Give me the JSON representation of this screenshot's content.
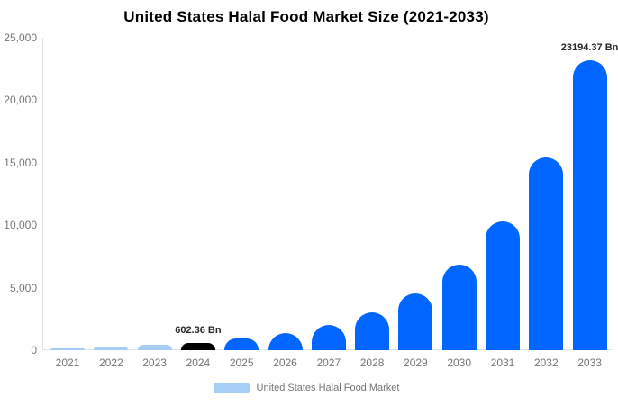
{
  "chart_data": {
    "type": "bar",
    "title": "United States Halal Food Market Size (2021-2033)",
    "xlabel": "",
    "ylabel": "",
    "categories": [
      "2021",
      "2022",
      "2023",
      "2024",
      "2025",
      "2026",
      "2027",
      "2028",
      "2029",
      "2030",
      "2031",
      "2032",
      "2033"
    ],
    "values": [
      180,
      270,
      400,
      602.36,
      903.5,
      1355.3,
      2033,
      3049.4,
      4574.2,
      6861.3,
      10291.9,
      15437.8,
      23194.37
    ],
    "bar_colors": [
      "#a5cdf6",
      "#a5cdf6",
      "#a5cdf6",
      "#000000",
      "#0066ff",
      "#0066ff",
      "#0066ff",
      "#0066ff",
      "#0066ff",
      "#0066ff",
      "#0066ff",
      "#0066ff",
      "#0066ff"
    ],
    "ylim": [
      0,
      25000
    ],
    "yticks": [
      {
        "value": 0,
        "label": "0"
      },
      {
        "value": 5000,
        "label": "5,000"
      },
      {
        "value": 10000,
        "label": "10,000"
      },
      {
        "value": 15000,
        "label": "15,000"
      },
      {
        "value": 20000,
        "label": "20,000"
      },
      {
        "value": 25000,
        "label": "25,000"
      }
    ],
    "grid": false,
    "annotations": [
      {
        "category": "2024",
        "text": "602.36 Bn"
      },
      {
        "category": "2033",
        "text": "23194.37 Bn"
      }
    ],
    "legend": {
      "label": "United States Halal Food Market",
      "position": "bottom",
      "swatch_color": "#a5cdf6"
    },
    "colors": {
      "accent_blue": "#0066ff",
      "light_blue": "#a5cdf6",
      "highlight_black": "#000000",
      "axis_line": "#e3e3e3",
      "tick_text": "#757575",
      "title_text": "#000000",
      "annotation_text": "#262626"
    }
  }
}
